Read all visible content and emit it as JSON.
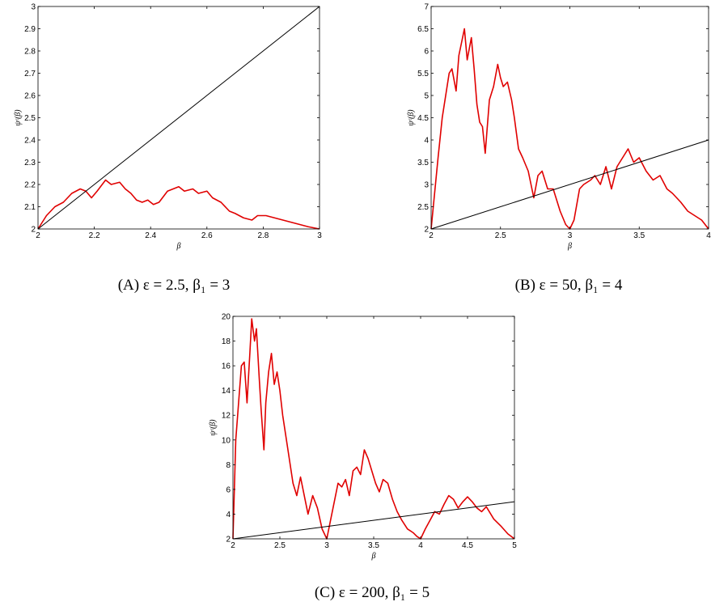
{
  "figure": {
    "panels": [
      {
        "caption": "(A) ε = 2.5, β₁ = 3"
      },
      {
        "caption": "(B) ε = 50, β₁ = 4"
      },
      {
        "caption": "(C) ε = 200, β₁ = 5"
      }
    ]
  },
  "chart_data": [
    {
      "type": "line",
      "xlabel": "β",
      "ylabel": "ψᵋ(β)",
      "xlim": [
        2,
        3
      ],
      "ylim": [
        2,
        3
      ],
      "xticks": [
        "2",
        "2.2",
        "2.4",
        "2.6",
        "2.8",
        "3"
      ],
      "yticks": [
        "2",
        "2.1",
        "2.2",
        "2.3",
        "2.4",
        "2.5",
        "2.6",
        "2.7",
        "2.8",
        "2.9",
        "3"
      ],
      "grid": false,
      "series": [
        {
          "color": "#e00000",
          "x": [
            2,
            2.03,
            2.06,
            2.09,
            2.12,
            2.15,
            2.17,
            2.19,
            2.21,
            2.24,
            2.26,
            2.29,
            2.31,
            2.33,
            2.35,
            2.37,
            2.39,
            2.41,
            2.43,
            2.46,
            2.48,
            2.5,
            2.52,
            2.55,
            2.57,
            2.6,
            2.62,
            2.65,
            2.68,
            2.7,
            2.73,
            2.76,
            2.78,
            2.81,
            2.84,
            2.87,
            2.9,
            2.93,
            2.96,
            3
          ],
          "y": [
            2,
            2.06,
            2.1,
            2.12,
            2.16,
            2.18,
            2.17,
            2.14,
            2.17,
            2.22,
            2.2,
            2.21,
            2.18,
            2.16,
            2.13,
            2.12,
            2.13,
            2.11,
            2.12,
            2.17,
            2.18,
            2.19,
            2.17,
            2.18,
            2.16,
            2.17,
            2.14,
            2.12,
            2.08,
            2.07,
            2.05,
            2.04,
            2.06,
            2.06,
            2.05,
            2.04,
            2.03,
            2.02,
            2.01,
            2
          ]
        },
        {
          "color": "#000000",
          "x": [
            2,
            3
          ],
          "y": [
            2,
            3
          ]
        }
      ]
    },
    {
      "type": "line",
      "xlabel": "β",
      "ylabel": "ψᵋ(β)",
      "xlim": [
        2,
        4
      ],
      "ylim": [
        2,
        7
      ],
      "xticks": [
        "2",
        "2.5",
        "3",
        "3.5",
        "4"
      ],
      "yticks": [
        "2",
        "2.5",
        "3",
        "3.5",
        "4",
        "4.5",
        "5",
        "5.5",
        "6",
        "6.5",
        "7"
      ],
      "grid": false,
      "series": [
        {
          "color": "#e00000",
          "x": [
            2,
            2.05,
            2.08,
            2.1,
            2.13,
            2.15,
            2.18,
            2.2,
            2.22,
            2.24,
            2.26,
            2.29,
            2.31,
            2.33,
            2.35,
            2.37,
            2.39,
            2.42,
            2.45,
            2.48,
            2.5,
            2.52,
            2.55,
            2.58,
            2.6,
            2.63,
            2.66,
            2.7,
            2.74,
            2.77,
            2.8,
            2.84,
            2.88,
            2.93,
            2.97,
            3,
            3.03,
            3.07,
            3.1,
            3.15,
            3.18,
            3.22,
            3.26,
            3.3,
            3.34,
            3.38,
            3.42,
            3.46,
            3.5,
            3.55,
            3.6,
            3.65,
            3.7,
            3.74,
            3.8,
            3.85,
            3.9,
            3.95,
            4
          ],
          "y": [
            2,
            3.6,
            4.5,
            4.9,
            5.5,
            5.6,
            5.1,
            5.9,
            6.2,
            6.5,
            5.8,
            6.3,
            5.6,
            4.8,
            4.4,
            4.3,
            3.7,
            4.9,
            5.2,
            5.7,
            5.4,
            5.2,
            5.3,
            4.9,
            4.5,
            3.8,
            3.6,
            3.3,
            2.7,
            3.2,
            3.3,
            2.9,
            2.9,
            2.4,
            2.1,
            2,
            2.2,
            2.9,
            3.0,
            3.1,
            3.2,
            3.0,
            3.4,
            2.9,
            3.4,
            3.6,
            3.8,
            3.5,
            3.6,
            3.3,
            3.1,
            3.2,
            2.9,
            2.8,
            2.6,
            2.4,
            2.3,
            2.2,
            2
          ]
        },
        {
          "color": "#000000",
          "x": [
            2,
            4
          ],
          "y": [
            2,
            4
          ]
        }
      ]
    },
    {
      "type": "line",
      "xlabel": "β",
      "ylabel": "ψᵋ(β)",
      "xlim": [
        2,
        5
      ],
      "ylim": [
        2,
        20
      ],
      "xticks": [
        "2",
        "2.5",
        "3",
        "3.5",
        "4",
        "4.5",
        "5"
      ],
      "yticks": [
        "2",
        "4",
        "6",
        "8",
        "10",
        "12",
        "14",
        "16",
        "18",
        "20"
      ],
      "grid": false,
      "series": [
        {
          "color": "#e00000",
          "x": [
            2,
            2.03,
            2.06,
            2.09,
            2.12,
            2.15,
            2.18,
            2.2,
            2.23,
            2.25,
            2.28,
            2.3,
            2.33,
            2.35,
            2.38,
            2.41,
            2.44,
            2.47,
            2.5,
            2.53,
            2.56,
            2.6,
            2.64,
            2.68,
            2.72,
            2.76,
            2.8,
            2.85,
            2.9,
            2.95,
            3,
            3.04,
            3.08,
            3.12,
            3.16,
            3.2,
            3.24,
            3.28,
            3.32,
            3.36,
            3.4,
            3.44,
            3.48,
            3.52,
            3.56,
            3.6,
            3.65,
            3.7,
            3.75,
            3.8,
            3.86,
            3.92,
            3.96,
            4,
            4.05,
            4.1,
            4.15,
            4.2,
            4.25,
            4.3,
            4.35,
            4.4,
            4.45,
            4.5,
            4.55,
            4.6,
            4.65,
            4.7,
            4.78,
            4.86,
            4.93,
            5
          ],
          "y": [
            2,
            10,
            13,
            16,
            16.3,
            13,
            17,
            19.8,
            18,
            19,
            15,
            12.5,
            9.2,
            13,
            15.5,
            17,
            14.5,
            15.5,
            14,
            12,
            10.5,
            8.5,
            6.5,
            5.5,
            7,
            5.5,
            4,
            5.5,
            4.5,
            2.8,
            2,
            3.5,
            5,
            6.5,
            6.2,
            6.8,
            5.5,
            7.5,
            7.8,
            7.2,
            9.2,
            8.5,
            7.5,
            6.5,
            5.8,
            6.8,
            6.5,
            5.2,
            4.2,
            3.5,
            2.8,
            2.5,
            2.2,
            2,
            2.8,
            3.5,
            4.2,
            4.0,
            4.8,
            5.5,
            5.2,
            4.5,
            5.0,
            5.4,
            5.0,
            4.5,
            4.2,
            4.6,
            3.6,
            3.0,
            2.4,
            2
          ]
        },
        {
          "color": "#000000",
          "x": [
            2,
            5
          ],
          "y": [
            2,
            5
          ]
        }
      ]
    }
  ]
}
